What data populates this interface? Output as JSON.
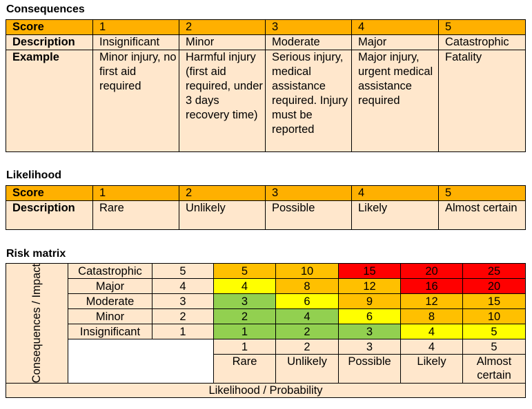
{
  "consequences": {
    "heading": "Consequences",
    "score_label": "Score",
    "description_label": "Description",
    "example_label": "Example",
    "scores": [
      "1",
      "2",
      "3",
      "4",
      "5"
    ],
    "descriptions": [
      "Insignificant",
      "Minor",
      "Moderate",
      "Major",
      "Catastrophic"
    ],
    "examples": [
      "Minor injury, no first aid required",
      "Harmful injury (first aid required, under 3 days recovery time)",
      "Serious injury, medical assistance required. Injury must be reported",
      "Major injury, urgent medical assistance required",
      "Fatality"
    ]
  },
  "likelihood": {
    "heading": "Likelihood",
    "score_label": "Score",
    "description_label": "Description",
    "scores": [
      "1",
      "2",
      "3",
      "4",
      "5"
    ],
    "descriptions": [
      "Rare",
      "Unlikely",
      "Possible",
      "Likely",
      "Almost certain"
    ]
  },
  "risk_matrix": {
    "heading": "Risk matrix",
    "y_axis_label": "Consequences / Impact",
    "x_axis_label": "Likelihood / Probability",
    "rows": [
      {
        "label": "Catastrophic",
        "score": "5",
        "values": [
          "5",
          "10",
          "15",
          "20",
          "25"
        ],
        "colors": [
          "orange",
          "orange",
          "red",
          "red",
          "red"
        ]
      },
      {
        "label": "Major",
        "score": "4",
        "values": [
          "4",
          "8",
          "12",
          "16",
          "20"
        ],
        "colors": [
          "yellow",
          "orange",
          "orange",
          "red",
          "red"
        ]
      },
      {
        "label": "Moderate",
        "score": "3",
        "values": [
          "3",
          "6",
          "9",
          "12",
          "15"
        ],
        "colors": [
          "green",
          "yellow",
          "orange",
          "orange",
          "orange"
        ]
      },
      {
        "label": "Minor",
        "score": "2",
        "values": [
          "2",
          "4",
          "6",
          "8",
          "10"
        ],
        "colors": [
          "green",
          "green",
          "yellow",
          "orange",
          "orange"
        ]
      },
      {
        "label": "Insignificant",
        "score": "1",
        "values": [
          "1",
          "2",
          "3",
          "4",
          "5"
        ],
        "colors": [
          "green",
          "green",
          "green",
          "yellow",
          "yellow"
        ]
      }
    ],
    "likelihood_scores": [
      "1",
      "2",
      "3",
      "4",
      "5"
    ],
    "likelihood_labels": [
      "Rare",
      "Unlikely",
      "Possible",
      "Likely",
      "Almost certain"
    ]
  },
  "colors": {
    "header_orange": "#FFB000",
    "light_peach": "#FFE7CC",
    "red": "#FF0000",
    "orange": "#FFC000",
    "yellow": "#FFFF00",
    "green": "#92D050"
  }
}
